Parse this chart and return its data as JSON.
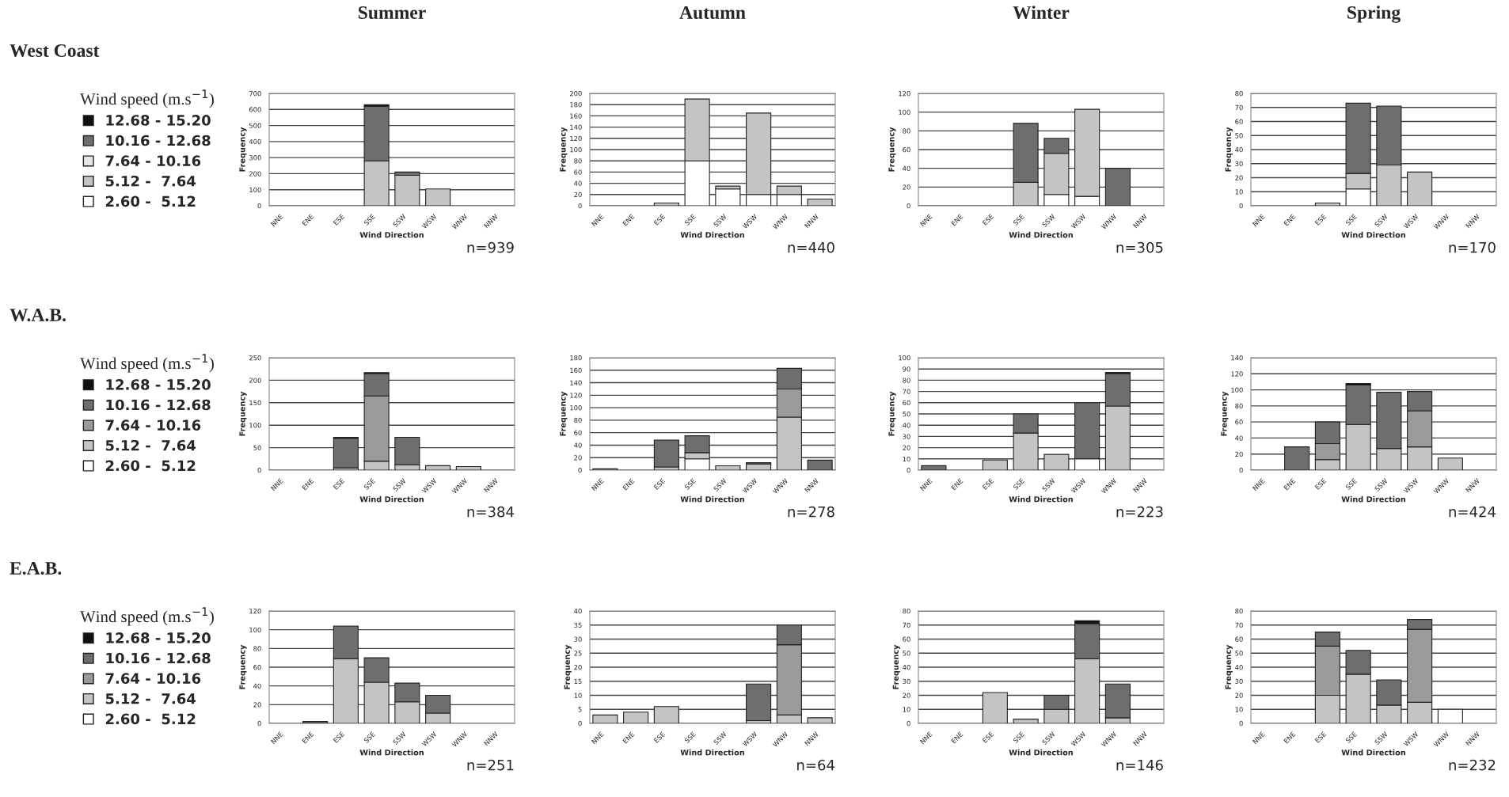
{
  "chart_data": [
    {
      "type": "bar",
      "stacked": true,
      "title": "Summer",
      "xlabel": "Wind Direction",
      "ylabel": "Frequency",
      "legend_title": "Wind speed (m.s$^{−1}$)",
      "legend": "left",
      "grid": "y",
      "annotations": [
        "West Coast",
        "n=939"
      ],
      "categories": [
        "NNE",
        "ENE",
        "ESE",
        "SSE",
        "SSW",
        "WSW",
        "WNW",
        "NNW"
      ],
      "ylim": [
        0,
        700
      ],
      "yticks": [
        0,
        100,
        200,
        300,
        400,
        500,
        600,
        700
      ],
      "series": [
        {
          "name": "2.60 -  5.12",
          "color": "#ffffff",
          "values": [
            null,
            null,
            null,
            null,
            null,
            null,
            null,
            null
          ]
        },
        {
          "name": "5.12 -  7.64",
          "color": "#c4c4c4",
          "values": [
            null,
            null,
            null,
            280,
            190,
            105,
            null,
            null
          ]
        },
        {
          "name": "7.64 - 10.16",
          "color": "#e6e6e6",
          "values": [
            null,
            null,
            null,
            null,
            null,
            null,
            null,
            null
          ]
        },
        {
          "name": "10.16 - 12.68",
          "color": "#6e6e6e",
          "values": [
            null,
            null,
            null,
            340,
            20,
            null,
            null,
            null
          ]
        },
        {
          "name": "12.68 - 15.20",
          "color": "#111111",
          "values": [
            null,
            null,
            null,
            10,
            null,
            null,
            null,
            null
          ]
        }
      ]
    },
    {
      "type": "bar",
      "stacked": true,
      "title": "Autumn",
      "xlabel": "Wind Direction",
      "ylabel": "Frequency",
      "grid": "y",
      "annotations": [
        "n=440"
      ],
      "categories": [
        "NNE",
        "ENE",
        "ESE",
        "SSE",
        "SSW",
        "WSW",
        "WNW",
        "NNW"
      ],
      "ylim": [
        0,
        200
      ],
      "yticks": [
        0,
        20,
        40,
        60,
        80,
        100,
        120,
        140,
        160,
        180,
        200
      ],
      "series": [
        {
          "color": "#ffffff",
          "values": [
            null,
            null,
            null,
            80,
            30,
            20,
            20,
            null
          ]
        },
        {
          "color": "#c4c4c4",
          "values": [
            null,
            null,
            5,
            110,
            5,
            145,
            15,
            12
          ]
        }
      ]
    },
    {
      "type": "bar",
      "stacked": true,
      "title": "Winter",
      "xlabel": "Wind Direction",
      "ylabel": "Frequency",
      "grid": "y",
      "annotations": [
        "n=305"
      ],
      "categories": [
        "NNE",
        "ENE",
        "ESE",
        "SSE",
        "SSW",
        "WSW",
        "WNW",
        "NNW"
      ],
      "ylim": [
        0,
        120
      ],
      "yticks": [
        0,
        20,
        40,
        60,
        80,
        100,
        120
      ],
      "series": [
        {
          "color": "#ffffff",
          "values": [
            null,
            null,
            null,
            null,
            12,
            10,
            null,
            null
          ]
        },
        {
          "color": "#c4c4c4",
          "values": [
            null,
            null,
            null,
            25,
            44,
            93,
            null,
            null
          ]
        },
        {
          "color": "#6e6e6e",
          "values": [
            null,
            null,
            null,
            63,
            16,
            null,
            40,
            null
          ]
        }
      ]
    },
    {
      "type": "bar",
      "stacked": true,
      "title": "Spring",
      "xlabel": "Wind Direction",
      "ylabel": "Frequency",
      "grid": "y",
      "annotations": [
        "n=170"
      ],
      "categories": [
        "NNE",
        "ENE",
        "ESE",
        "SSE",
        "SSW",
        "WSW",
        "WNW",
        "NNW"
      ],
      "ylim": [
        0,
        80
      ],
      "yticks": [
        0,
        10,
        20,
        30,
        40,
        50,
        60,
        70,
        80
      ],
      "series": [
        {
          "color": "#ffffff",
          "values": [
            null,
            null,
            null,
            12,
            null,
            null,
            null,
            null
          ]
        },
        {
          "color": "#c4c4c4",
          "values": [
            null,
            null,
            2,
            11,
            29,
            24,
            null,
            null
          ]
        },
        {
          "color": "#6e6e6e",
          "values": [
            null,
            null,
            null,
            50,
            42,
            null,
            null,
            null
          ]
        }
      ]
    },
    {
      "type": "bar",
      "stacked": true,
      "xlabel": "Wind Direction",
      "ylabel": "Frequency",
      "legend_title": "Wind speed (m.s$^{−1}$)",
      "legend": "left",
      "grid": "y",
      "annotations": [
        "W.A.B.",
        "n=384"
      ],
      "categories": [
        "NNE",
        "ENE",
        "ESE",
        "SSE",
        "SSW",
        "WSW",
        "WNW",
        "NNW"
      ],
      "ylim": [
        0,
        250
      ],
      "yticks": [
        0,
        50,
        100,
        150,
        200,
        250
      ],
      "series": [
        {
          "name": "2.60 -  5.12",
          "color": "#ffffff",
          "values": [
            null,
            null,
            null,
            null,
            null,
            null,
            null,
            null
          ]
        },
        {
          "name": "5.12 -  7.64",
          "color": "#c4c4c4",
          "values": [
            null,
            null,
            5,
            20,
            12,
            10,
            8,
            null
          ]
        },
        {
          "name": "7.64 - 10.16",
          "color": "#9a9a9a",
          "values": [
            null,
            null,
            null,
            145,
            null,
            null,
            null,
            null
          ]
        },
        {
          "name": "10.16 - 12.68",
          "color": "#6e6e6e",
          "values": [
            null,
            null,
            66,
            50,
            61,
            null,
            null,
            null
          ]
        },
        {
          "name": "12.68 - 15.20",
          "color": "#111111",
          "values": [
            null,
            null,
            2,
            2,
            null,
            null,
            null,
            null
          ]
        }
      ]
    },
    {
      "type": "bar",
      "stacked": true,
      "xlabel": "Wind Direction",
      "ylabel": "Frequency",
      "grid": "y",
      "annotations": [
        "n=278"
      ],
      "categories": [
        "NNE",
        "ENE",
        "ESE",
        "SSE",
        "SSW",
        "WSW",
        "WNW",
        "NNW"
      ],
      "ylim": [
        0,
        180
      ],
      "yticks": [
        0,
        20,
        40,
        60,
        80,
        100,
        120,
        140,
        160,
        180
      ],
      "series": [
        {
          "color": "#ffffff",
          "values": [
            null,
            null,
            null,
            18,
            null,
            null,
            null,
            null
          ]
        },
        {
          "color": "#c4c4c4",
          "values": [
            2,
            null,
            5,
            10,
            7,
            10,
            85,
            null
          ]
        },
        {
          "color": "#9a9a9a",
          "values": [
            null,
            null,
            null,
            null,
            null,
            null,
            45,
            null
          ]
        },
        {
          "color": "#6e6e6e",
          "values": [
            null,
            null,
            43,
            27,
            null,
            2,
            33,
            16
          ]
        }
      ]
    },
    {
      "type": "bar",
      "stacked": true,
      "xlabel": "Wind Direction",
      "ylabel": "Frequency",
      "grid": "y",
      "annotations": [
        "n=223"
      ],
      "categories": [
        "NNE",
        "ENE",
        "ESE",
        "SSE",
        "SSW",
        "WSW",
        "WNW",
        "NNW"
      ],
      "ylim": [
        0,
        100
      ],
      "yticks": [
        0,
        10,
        20,
        30,
        40,
        50,
        60,
        70,
        80,
        90,
        100
      ],
      "series": [
        {
          "color": "#ffffff",
          "values": [
            null,
            null,
            null,
            null,
            null,
            10,
            null,
            null
          ]
        },
        {
          "color": "#c4c4c4",
          "values": [
            null,
            null,
            9,
            33,
            14,
            null,
            57,
            null
          ]
        },
        {
          "color": "#6e6e6e",
          "values": [
            4,
            null,
            null,
            17,
            null,
            50,
            29,
            null
          ]
        },
        {
          "color": "#111111",
          "values": [
            null,
            null,
            null,
            null,
            null,
            null,
            1,
            null
          ]
        }
      ]
    },
    {
      "type": "bar",
      "stacked": true,
      "xlabel": "Wind Direction",
      "ylabel": "Frequency",
      "grid": "y",
      "annotations": [
        "n=424"
      ],
      "categories": [
        "NNE",
        "ENE",
        "ESE",
        "SSE",
        "SSW",
        "WSW",
        "WNW",
        "NNW"
      ],
      "ylim": [
        0,
        140
      ],
      "yticks": [
        0,
        20,
        40,
        60,
        80,
        100,
        120,
        140
      ],
      "series": [
        {
          "color": "#c4c4c4",
          "values": [
            null,
            null,
            13,
            57,
            27,
            29,
            15,
            null
          ]
        },
        {
          "color": "#9a9a9a",
          "values": [
            null,
            null,
            20,
            null,
            null,
            45,
            null,
            null
          ]
        },
        {
          "color": "#6e6e6e",
          "values": [
            null,
            29,
            27,
            49,
            70,
            24,
            null,
            null
          ]
        },
        {
          "color": "#111111",
          "values": [
            null,
            null,
            null,
            2,
            null,
            null,
            null,
            null
          ]
        }
      ]
    },
    {
      "type": "bar",
      "stacked": true,
      "xlabel": "Wind Direction",
      "ylabel": "Frequency",
      "legend_title": "Wind speed (m.s$^{−1}$)",
      "legend": "left",
      "grid": "y",
      "annotations": [
        "E.A.B.",
        "n=251"
      ],
      "categories": [
        "NNE",
        "ENE",
        "ESE",
        "SSE",
        "SSW",
        "WSW",
        "WNW",
        "NNW"
      ],
      "ylim": [
        0,
        120
      ],
      "yticks": [
        0,
        20,
        40,
        60,
        80,
        100,
        120
      ],
      "series": [
        {
          "name": "2.60 -  5.12",
          "color": "#ffffff",
          "values": [
            null,
            null,
            null,
            null,
            null,
            null,
            null,
            null
          ]
        },
        {
          "name": "5.12 -  7.64",
          "color": "#c4c4c4",
          "values": [
            null,
            null,
            69,
            44,
            23,
            11,
            null,
            null
          ]
        },
        {
          "name": "7.64 - 10.16",
          "color": "#9a9a9a",
          "values": [
            null,
            null,
            null,
            null,
            null,
            null,
            null,
            null
          ]
        },
        {
          "name": "10.16 - 12.68",
          "color": "#6e6e6e",
          "values": [
            null,
            2,
            35,
            26,
            20,
            19,
            null,
            null
          ]
        },
        {
          "name": "12.68 - 15.20",
          "color": "#111111",
          "values": [
            null,
            null,
            null,
            null,
            null,
            null,
            null,
            null
          ]
        }
      ]
    },
    {
      "type": "bar",
      "stacked": true,
      "xlabel": "Wind Direction",
      "ylabel": "Frequency",
      "grid": "y",
      "annotations": [
        "n=64"
      ],
      "categories": [
        "NNE",
        "ENE",
        "ESE",
        "SSE",
        "SSW",
        "WSW",
        "WNW",
        "NNW"
      ],
      "ylim": [
        0,
        40
      ],
      "yticks": [
        0,
        5,
        10,
        15,
        20,
        25,
        30,
        35,
        40
      ],
      "series": [
        {
          "color": "#c4c4c4",
          "values": [
            3,
            4,
            6,
            null,
            null,
            1,
            3,
            2
          ]
        },
        {
          "color": "#9a9a9a",
          "values": [
            null,
            null,
            null,
            null,
            null,
            null,
            25,
            null
          ]
        },
        {
          "color": "#6e6e6e",
          "values": [
            null,
            null,
            null,
            null,
            null,
            13,
            7,
            null
          ]
        }
      ]
    },
    {
      "type": "bar",
      "stacked": true,
      "xlabel": "Wind Direction",
      "ylabel": "Frequency",
      "grid": "y",
      "annotations": [
        "n=146"
      ],
      "categories": [
        "NNE",
        "ENE",
        "ESE",
        "SSE",
        "SSW",
        "WSW",
        "WNW",
        "NNW"
      ],
      "ylim": [
        0,
        80
      ],
      "yticks": [
        0,
        10,
        20,
        30,
        40,
        50,
        60,
        70,
        80
      ],
      "series": [
        {
          "color": "#c4c4c4",
          "values": [
            null,
            null,
            22,
            3,
            10,
            46,
            4,
            null
          ]
        },
        {
          "color": "#6e6e6e",
          "values": [
            null,
            null,
            null,
            null,
            10,
            25,
            24,
            null
          ]
        },
        {
          "color": "#111111",
          "values": [
            null,
            null,
            null,
            null,
            null,
            2,
            null,
            null
          ]
        }
      ]
    },
    {
      "type": "bar",
      "stacked": true,
      "xlabel": "Wind Direction",
      "ylabel": "Frequency",
      "grid": "y",
      "annotations": [
        "n=232"
      ],
      "categories": [
        "NNE",
        "ENE",
        "ESE",
        "SSE",
        "SSW",
        "WSW",
        "WNW",
        "NNW"
      ],
      "ylim": [
        0,
        80
      ],
      "yticks": [
        0,
        10,
        20,
        30,
        40,
        50,
        60,
        70,
        80
      ],
      "series": [
        {
          "color": "#ffffff",
          "values": [
            null,
            null,
            null,
            null,
            null,
            null,
            10,
            null
          ]
        },
        {
          "color": "#c4c4c4",
          "values": [
            null,
            null,
            20,
            35,
            13,
            15,
            null,
            null
          ]
        },
        {
          "color": "#9a9a9a",
          "values": [
            null,
            null,
            35,
            null,
            null,
            52,
            null,
            null
          ]
        },
        {
          "color": "#6e6e6e",
          "values": [
            null,
            null,
            10,
            17,
            18,
            7,
            null,
            null
          ]
        }
      ]
    }
  ]
}
